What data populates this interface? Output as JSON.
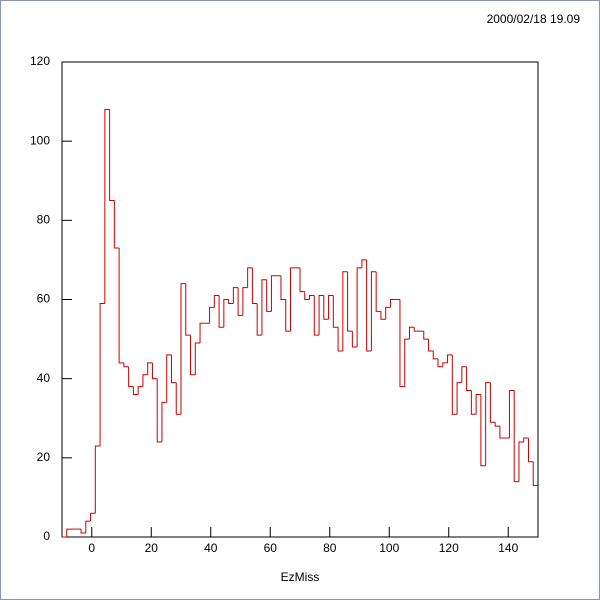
{
  "chart_data": {
    "type": "histogram",
    "timestamp": "2000/02/18  19.09",
    "x_label": "EzMiss",
    "color": "#cc0000",
    "bins": [
      -10,
      -8.4,
      -6.8,
      -5.2,
      -3.6,
      -2,
      -0.4,
      1.2,
      2.8,
      4.4,
      6,
      7.6,
      9.2,
      10.8,
      12.4,
      14,
      15.6,
      17.2,
      18.8,
      20.4,
      22,
      23.6,
      25.2,
      26.8,
      28.4,
      30,
      31.6,
      33.2,
      34.8,
      36.4,
      38,
      39.6,
      41.2,
      42.8,
      44.4,
      46,
      47.6,
      49.2,
      50.8,
      52.4,
      54,
      55.6,
      57.2,
      58.8,
      60.4,
      62,
      63.6,
      65.2,
      66.8,
      68.4,
      70,
      71.6,
      73.2,
      74.8,
      76.4,
      78,
      79.6,
      81.2,
      82.8,
      84.4,
      86,
      87.6,
      89.2,
      90.8,
      92.4,
      94,
      95.6,
      97.2,
      98.8,
      100.4,
      102,
      103.6,
      105.2,
      106.8,
      108.4,
      110,
      111.6,
      113.2,
      114.8,
      116.4,
      118,
      119.6,
      121.2,
      122.8,
      124.4,
      126,
      127.6,
      129.2,
      130.8,
      132.4,
      134,
      135.6,
      137.2,
      138.8,
      140.4,
      142,
      143.6,
      145.2,
      146.8,
      148.4,
      150
    ],
    "values": [
      0,
      2,
      2,
      2,
      1,
      4,
      6,
      23,
      59,
      108,
      85,
      73,
      44,
      43,
      38,
      36,
      38,
      41,
      44,
      40,
      24,
      34,
      46,
      39,
      31,
      64,
      51,
      41,
      49,
      54,
      54,
      58,
      61,
      53,
      60,
      59,
      63,
      56,
      63,
      68,
      59,
      51,
      65,
      57,
      66,
      66,
      60,
      52,
      68,
      68,
      62,
      60,
      61,
      51,
      61,
      55,
      61,
      53,
      47,
      67,
      52,
      48,
      68,
      70,
      47,
      67,
      57,
      55,
      58,
      60,
      60,
      38,
      50,
      53,
      52,
      52,
      50,
      47,
      45,
      43,
      44,
      46,
      31,
      39,
      43,
      37,
      31,
      36,
      18,
      39,
      29,
      28,
      25,
      25,
      37,
      14,
      24,
      25,
      19,
      13
    ],
    "xlim": [
      -10,
      150
    ],
    "xticks": [
      0,
      20,
      40,
      60,
      80,
      100,
      120,
      140
    ],
    "ylim": [
      0,
      120
    ],
    "yticks": [
      0,
      20,
      40,
      60,
      80,
      100,
      120
    ]
  }
}
